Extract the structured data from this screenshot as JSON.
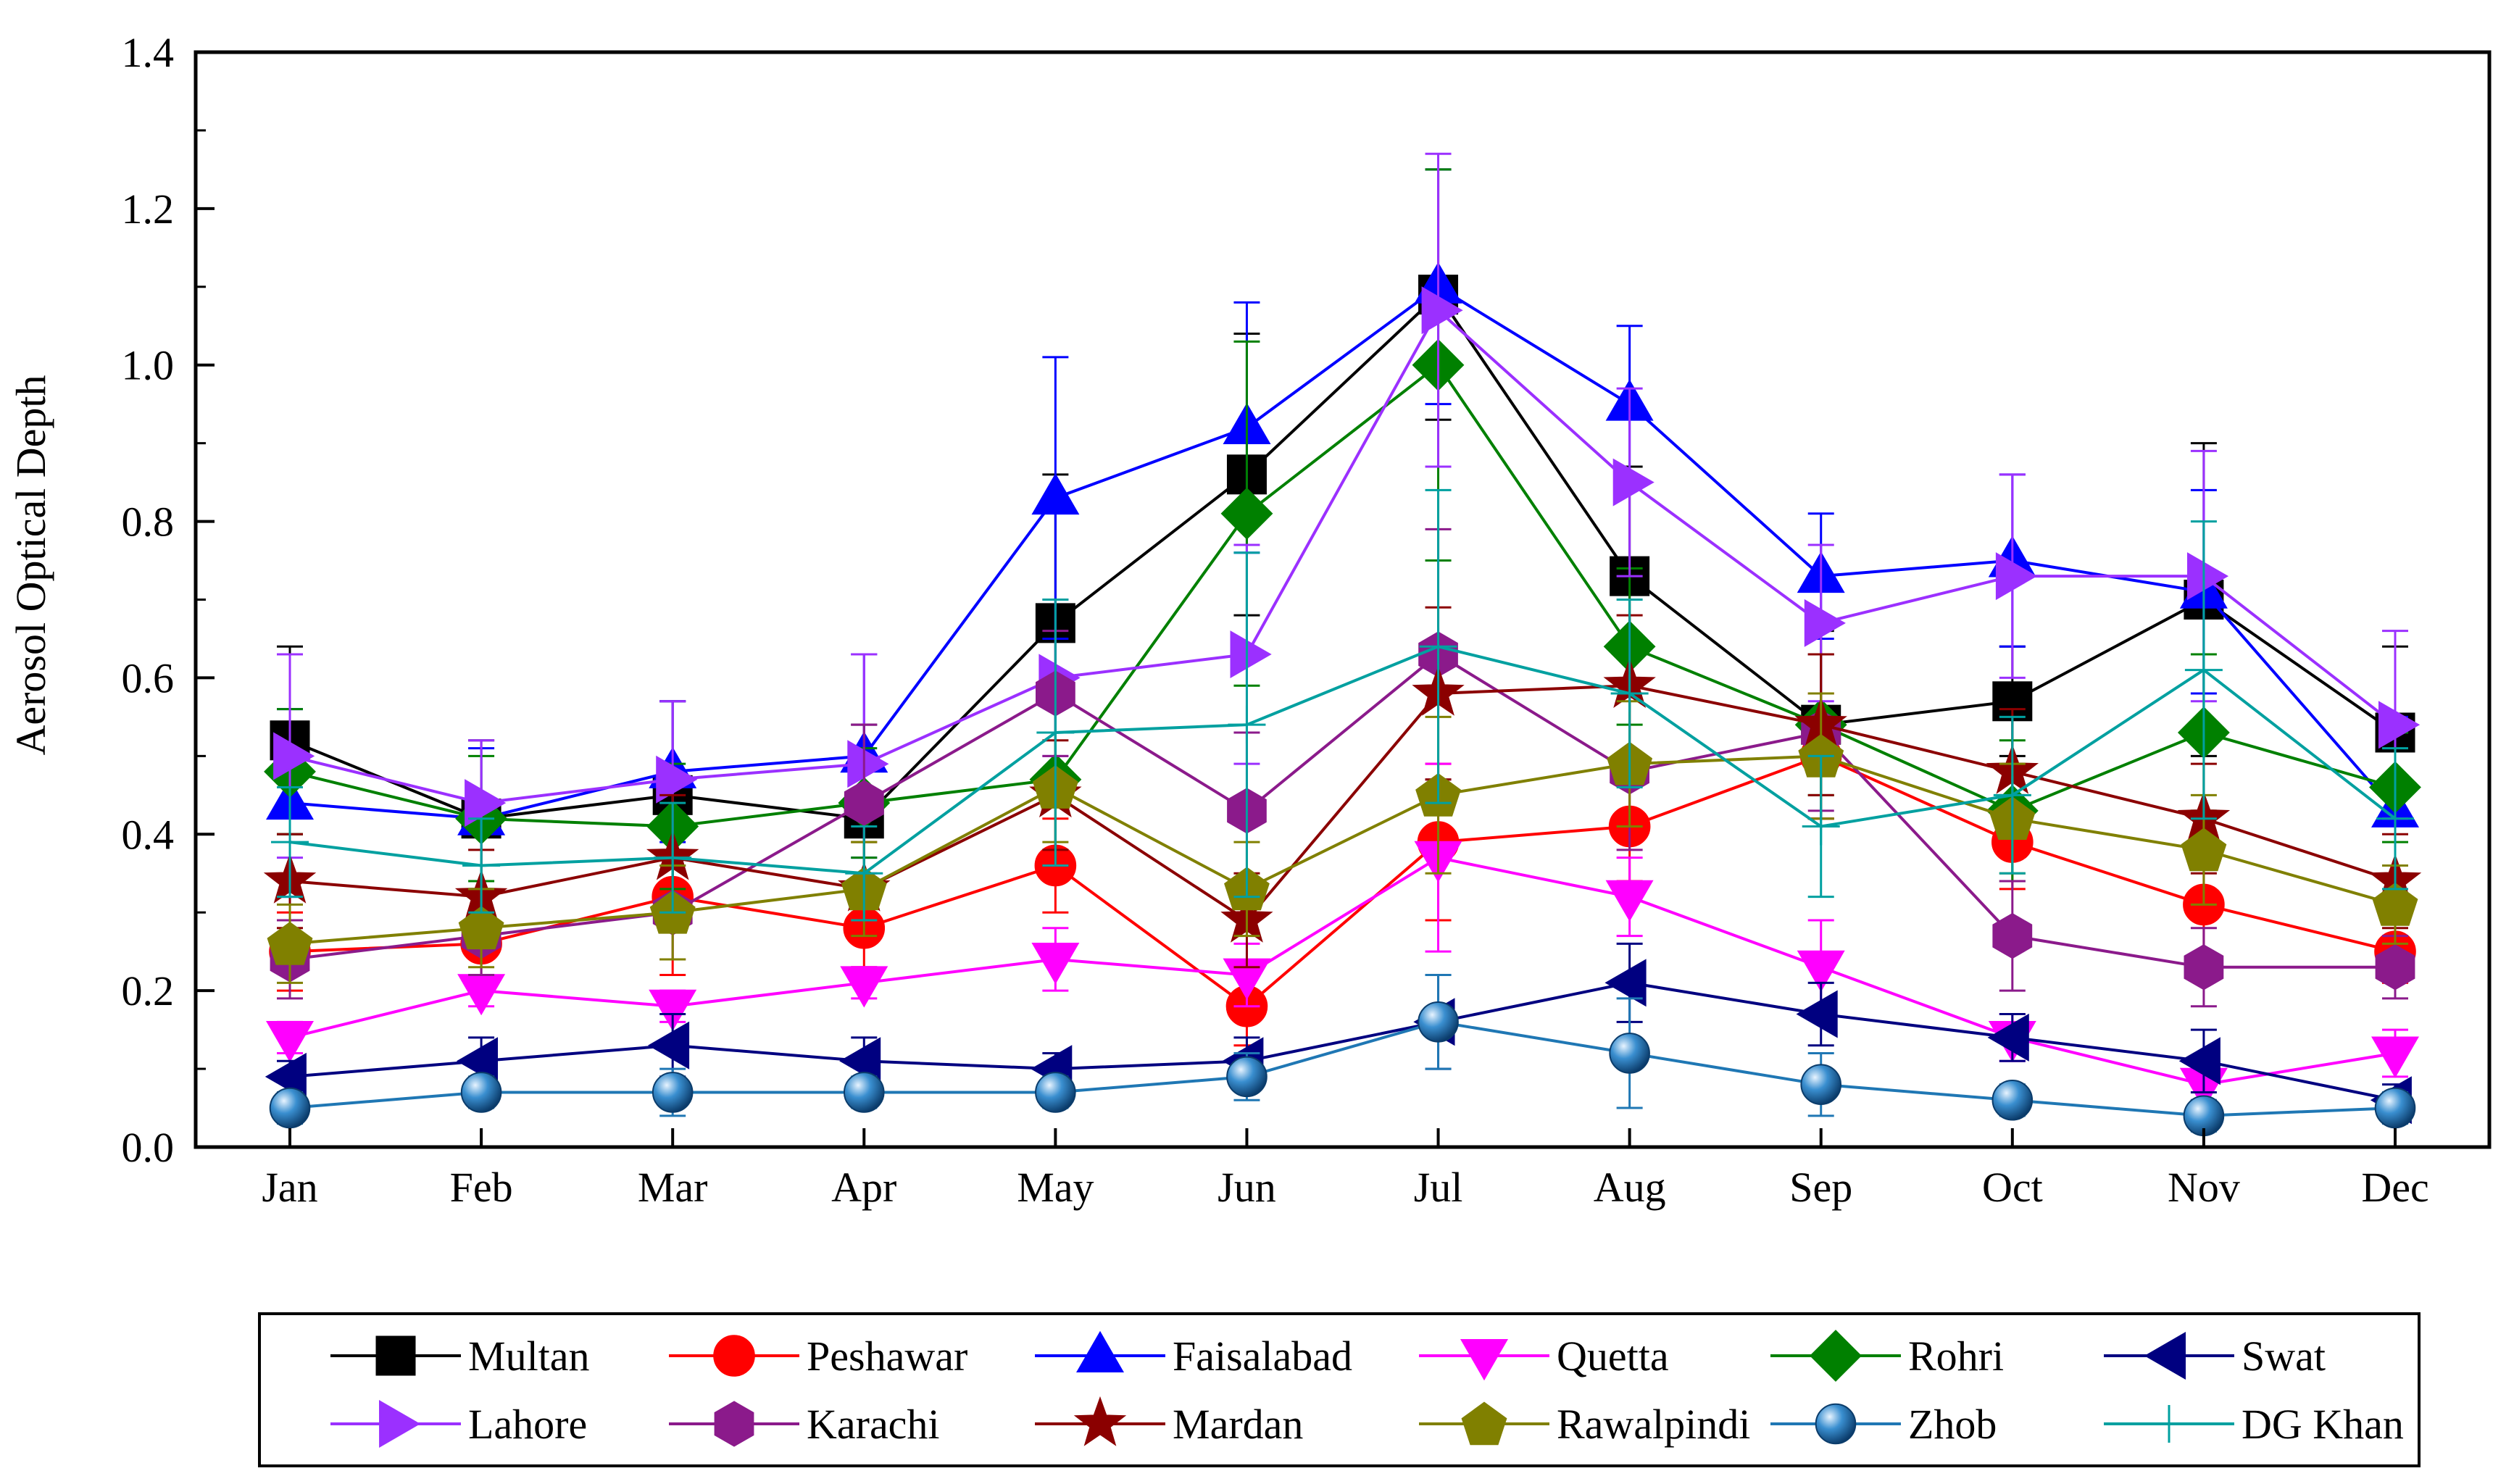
{
  "chart_data": {
    "type": "line",
    "title": "",
    "xlabel": "",
    "ylabel": "Aerosol Optical Depth",
    "ylim": [
      0,
      1.4
    ],
    "y_ticks": [
      "0.0",
      "0.2",
      "0.4",
      "0.6",
      "0.8",
      "1.0",
      "1.2",
      "1.4"
    ],
    "y_tick_values": [
      0,
      0.2,
      0.4,
      0.6,
      0.8,
      1.0,
      1.2,
      1.4
    ],
    "categories": [
      "Jan",
      "Feb",
      "Mar",
      "Apr",
      "May",
      "Jun",
      "Jul",
      "Aug",
      "Sep",
      "Oct",
      "Nov",
      "Dec"
    ],
    "grid": false,
    "error_bars": true,
    "legend": {
      "placement": "bottom"
    },
    "series": [
      {
        "name": "Multan",
        "color": "#000000",
        "marker": "square",
        "values": [
          0.52,
          0.42,
          0.45,
          0.42,
          0.67,
          0.86,
          1.09,
          0.73,
          0.54,
          0.57,
          0.7,
          0.53
        ],
        "errors": [
          0.12,
          0.1,
          0.12,
          0.12,
          0.19,
          0.18,
          0.16,
          0.14,
          0.12,
          0.07,
          0.2,
          0.11
        ]
      },
      {
        "name": "Peshawar",
        "color": "#ff0000",
        "marker": "circle",
        "values": [
          0.25,
          0.26,
          0.32,
          0.28,
          0.36,
          0.18,
          0.39,
          0.41,
          0.5,
          0.39,
          0.31,
          0.25
        ],
        "errors": [
          0.05,
          0.06,
          0.1,
          0.05,
          0.06,
          0.05,
          0.1,
          0.07,
          0.08,
          0.06,
          0.07,
          0.04
        ]
      },
      {
        "name": "Faisalabad",
        "color": "#0000ff",
        "marker": "triangle-up",
        "values": [
          0.44,
          0.42,
          0.48,
          0.5,
          0.83,
          0.92,
          1.1,
          0.95,
          0.73,
          0.75,
          0.71,
          0.43
        ],
        "errors": [
          0.12,
          0.09,
          0.09,
          0.13,
          0.18,
          0.16,
          0.15,
          0.1,
          0.08,
          0.11,
          0.13,
          0.12
        ]
      },
      {
        "name": "Quetta",
        "color": "#ff00ff",
        "marker": "triangle-down",
        "values": [
          0.14,
          0.2,
          0.18,
          0.21,
          0.24,
          0.22,
          0.37,
          0.32,
          0.23,
          0.14,
          0.08,
          0.12
        ],
        "errors": [
          0.02,
          0.02,
          0.02,
          0.02,
          0.04,
          0.04,
          0.12,
          0.05,
          0.06,
          0.03,
          0.02,
          0.03
        ]
      },
      {
        "name": "Rohri",
        "color": "#008000",
        "marker": "diamond",
        "values": [
          0.48,
          0.42,
          0.41,
          0.44,
          0.47,
          0.81,
          1.0,
          0.64,
          0.54,
          0.43,
          0.53,
          0.46
        ],
        "errors": [
          0.08,
          0.08,
          0.08,
          0.07,
          0.11,
          0.22,
          0.25,
          0.1,
          0.09,
          0.09,
          0.1,
          0.07
        ]
      },
      {
        "name": "Swat",
        "color": "#000080",
        "marker": "triangle-left",
        "values": [
          0.09,
          0.11,
          0.13,
          0.11,
          0.1,
          0.11,
          0.16,
          0.21,
          0.17,
          0.14,
          0.11,
          0.06
        ],
        "errors": [
          0.02,
          0.03,
          0.04,
          0.03,
          0.02,
          0.03,
          0.06,
          0.05,
          0.04,
          0.03,
          0.04,
          0.02
        ]
      },
      {
        "name": "Lahore",
        "color": "#9b30ff",
        "marker": "triangle-right",
        "values": [
          0.5,
          0.44,
          0.47,
          0.49,
          0.6,
          0.63,
          1.07,
          0.85,
          0.67,
          0.73,
          0.73,
          0.54
        ],
        "errors": [
          0.13,
          0.08,
          0.1,
          0.14,
          0.1,
          0.14,
          0.2,
          0.12,
          0.1,
          0.13,
          0.16,
          0.12
        ]
      },
      {
        "name": "Karachi",
        "color": "#8b1a8b",
        "marker": "hexagon",
        "values": [
          0.24,
          0.27,
          0.3,
          0.44,
          0.58,
          0.43,
          0.63,
          0.48,
          0.53,
          0.27,
          0.23,
          0.23
        ],
        "errors": [
          0.05,
          0.05,
          0.06,
          0.1,
          0.08,
          0.1,
          0.16,
          0.1,
          0.1,
          0.07,
          0.05,
          0.04
        ]
      },
      {
        "name": "Mardan",
        "color": "#8b0000",
        "marker": "star",
        "values": [
          0.34,
          0.32,
          0.37,
          0.33,
          0.45,
          0.29,
          0.58,
          0.59,
          0.54,
          0.48,
          0.42,
          0.34
        ],
        "errors": [
          0.06,
          0.06,
          0.08,
          0.06,
          0.07,
          0.06,
          0.11,
          0.09,
          0.09,
          0.08,
          0.07,
          0.06
        ]
      },
      {
        "name": "Rawalpindi",
        "color": "#808000",
        "marker": "pentagon",
        "values": [
          0.26,
          0.28,
          0.3,
          0.33,
          0.46,
          0.33,
          0.45,
          0.49,
          0.5,
          0.42,
          0.38,
          0.31
        ],
        "errors": [
          0.05,
          0.05,
          0.06,
          0.06,
          0.07,
          0.06,
          0.1,
          0.08,
          0.08,
          0.07,
          0.07,
          0.05
        ]
      },
      {
        "name": "Zhob",
        "color": "#1f77b4",
        "marker": "sphere",
        "values": [
          0.05,
          0.07,
          0.07,
          0.07,
          0.07,
          0.09,
          0.16,
          0.12,
          0.08,
          0.06,
          0.04,
          0.05
        ],
        "errors": [
          0.02,
          0.02,
          0.03,
          0.02,
          0.02,
          0.03,
          0.06,
          0.07,
          0.04,
          0.02,
          0.02,
          0.02
        ]
      },
      {
        "name": "DG Khan",
        "color": "#00a0a0",
        "marker": "plus",
        "values": [
          0.39,
          0.36,
          0.37,
          0.35,
          0.53,
          0.54,
          0.64,
          0.58,
          0.41,
          0.45,
          0.61,
          0.42
        ],
        "errors": [
          0.07,
          0.06,
          0.07,
          0.06,
          0.17,
          0.22,
          0.2,
          0.12,
          0.09,
          0.1,
          0.19,
          0.09
        ]
      }
    ]
  }
}
